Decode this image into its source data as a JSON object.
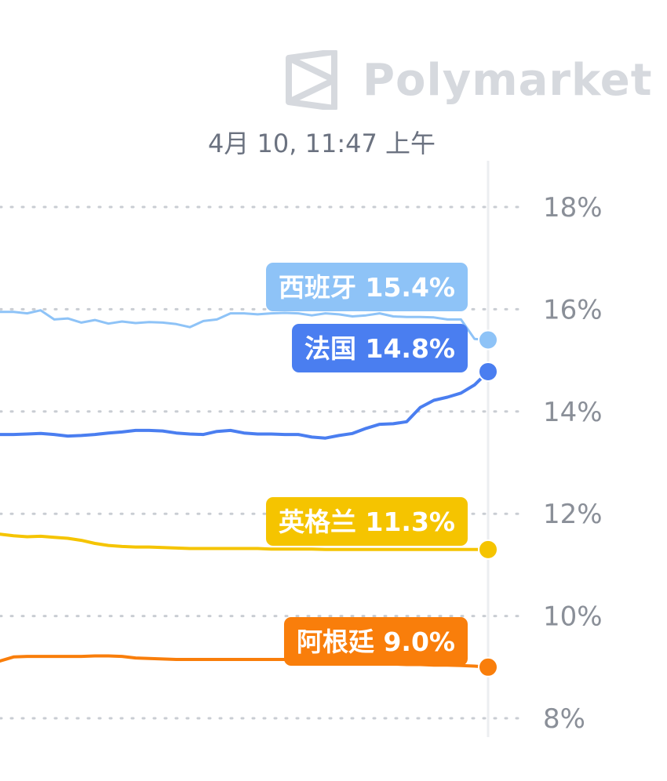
{
  "brand": {
    "name": "Polymarket",
    "icon": "polymarket-logo-icon",
    "color": "#d6d9de"
  },
  "timestamp": "4月 10, 11:47 上午",
  "chart_data": {
    "type": "line",
    "ylim": [
      7.9,
      18.3
    ],
    "yticks": [
      {
        "value": 18,
        "label": "18%"
      },
      {
        "value": 16,
        "label": "16%"
      },
      {
        "value": 14,
        "label": "14%"
      },
      {
        "value": 12,
        "label": "12%"
      },
      {
        "value": 10,
        "label": "10%"
      },
      {
        "value": 8,
        "label": "8%"
      }
    ],
    "grid": true,
    "x": [
      0,
      1,
      2,
      3,
      4,
      5,
      6,
      7,
      8,
      9,
      10,
      11,
      12,
      13,
      14,
      15,
      16,
      17,
      18,
      19,
      20,
      21,
      22,
      23,
      24,
      25,
      26,
      27,
      28,
      29,
      30,
      31,
      32,
      33,
      34,
      35,
      36
    ],
    "series": [
      {
        "name": "西班牙",
        "label": "西班牙 15.4%",
        "color": "#8ec3f7",
        "line_width": 3,
        "values": [
          15.95,
          15.95,
          15.92,
          15.98,
          15.8,
          15.82,
          15.74,
          15.79,
          15.72,
          15.76,
          15.73,
          15.75,
          15.74,
          15.71,
          15.65,
          15.77,
          15.8,
          15.92,
          15.92,
          15.9,
          15.92,
          15.93,
          15.92,
          15.88,
          15.92,
          15.9,
          15.86,
          15.88,
          15.92,
          15.86,
          15.85,
          15.85,
          15.84,
          15.8,
          15.8,
          15.42,
          15.4
        ]
      },
      {
        "name": "法国",
        "label": "法国 14.8%",
        "color": "#4a7ef0",
        "line_width": 4,
        "values": [
          13.55,
          13.55,
          13.56,
          13.57,
          13.55,
          13.52,
          13.53,
          13.55,
          13.58,
          13.6,
          13.63,
          13.63,
          13.62,
          13.58,
          13.56,
          13.55,
          13.61,
          13.63,
          13.58,
          13.56,
          13.56,
          13.55,
          13.55,
          13.5,
          13.48,
          13.53,
          13.57,
          13.67,
          13.75,
          13.76,
          13.8,
          14.08,
          14.22,
          14.28,
          14.36,
          14.52,
          14.78
        ]
      },
      {
        "name": "英格兰",
        "label": "英格兰 11.3%",
        "color": "#f5c400",
        "line_width": 4,
        "values": [
          11.6,
          11.57,
          11.55,
          11.56,
          11.54,
          11.52,
          11.48,
          11.42,
          11.38,
          11.36,
          11.35,
          11.35,
          11.34,
          11.33,
          11.32,
          11.32,
          11.32,
          11.32,
          11.32,
          11.32,
          11.31,
          11.31,
          11.31,
          11.31,
          11.3,
          11.3,
          11.3,
          11.3,
          11.3,
          11.3,
          11.3,
          11.3,
          11.3,
          11.3,
          11.3,
          11.3,
          11.3
        ]
      },
      {
        "name": "阿根廷",
        "label": "阿根廷 9.0%",
        "color": "#f97e0b",
        "line_width": 4,
        "values": [
          9.12,
          9.2,
          9.21,
          9.21,
          9.21,
          9.21,
          9.21,
          9.22,
          9.22,
          9.21,
          9.18,
          9.17,
          9.16,
          9.15,
          9.15,
          9.15,
          9.15,
          9.15,
          9.15,
          9.15,
          9.15,
          9.15,
          9.15,
          9.15,
          9.15,
          9.12,
          9.1,
          9.1,
          9.08,
          9.06,
          9.05,
          9.05,
          9.04,
          9.04,
          9.03,
          9.02,
          9.0
        ]
      }
    ]
  }
}
